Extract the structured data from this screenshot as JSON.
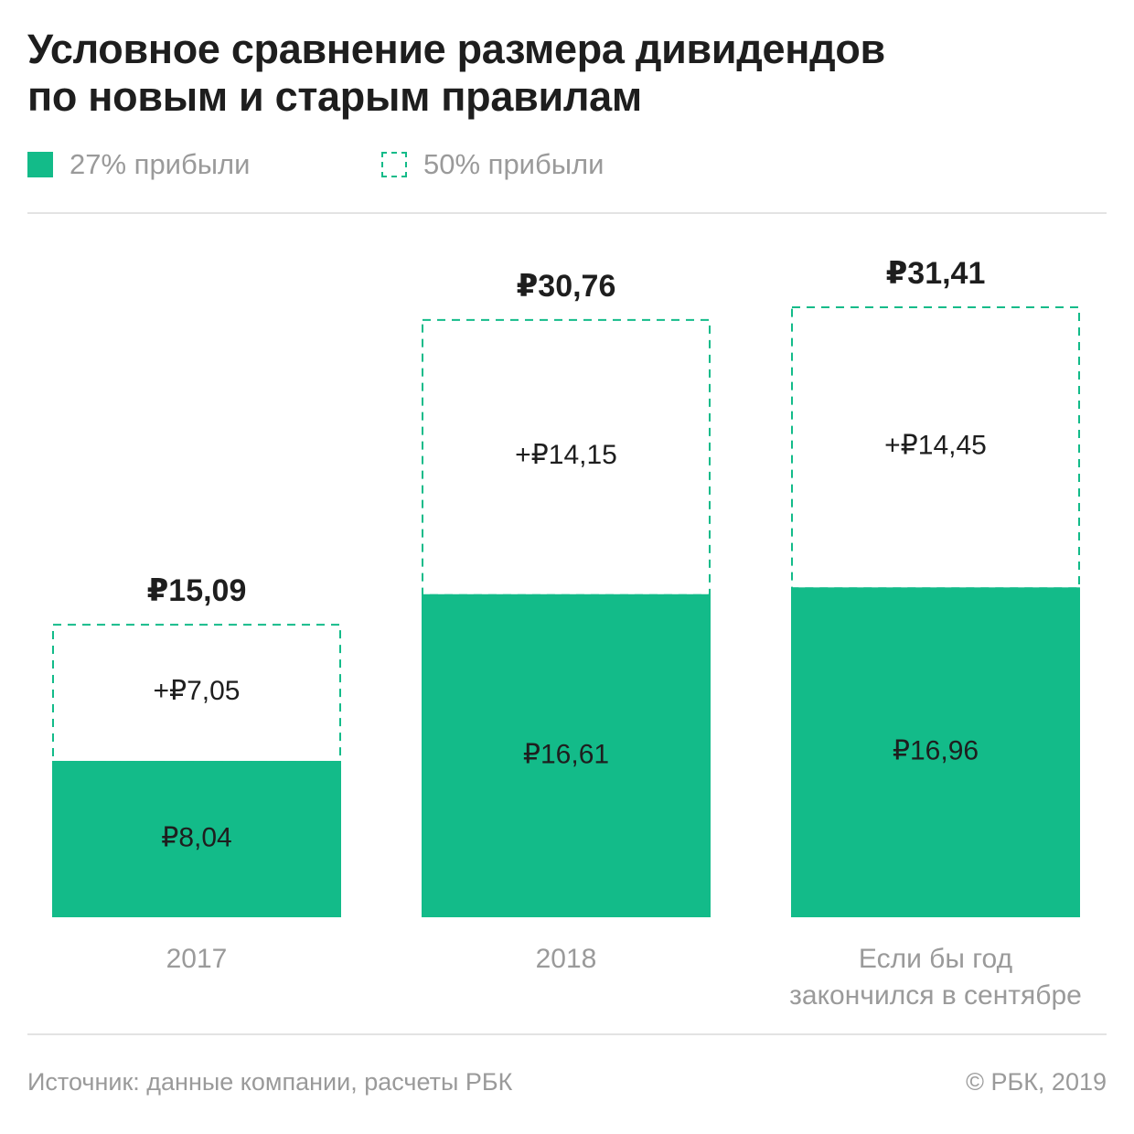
{
  "title_lines": [
    "Условное сравнение размера дивидендов",
    "по новым и старым правилам"
  ],
  "legend": {
    "item1": {
      "label": "27% прибыли",
      "style": "solid"
    },
    "item2": {
      "label": "50% прибыли",
      "style": "dashed"
    }
  },
  "colors": {
    "accent": "#13bb89",
    "muted_text": "#9a9a9a",
    "dark_text": "#1e1e1e"
  },
  "chart_data": {
    "type": "bar",
    "stacked": true,
    "categories": [
      [
        "2017"
      ],
      [
        "2018"
      ],
      [
        "Если бы год",
        "закончился в сентябре"
      ]
    ],
    "series": [
      {
        "name": "27% прибыли",
        "values": [
          8.04,
          16.61,
          16.96
        ],
        "labels": [
          "₽8,04",
          "₽16,61",
          "₽16,96"
        ]
      },
      {
        "name": "50% прибыли",
        "values": [
          7.05,
          14.15,
          14.45
        ],
        "labels": [
          "+₽7,05",
          "+₽14,15",
          "+₽14,45"
        ]
      }
    ],
    "totals": [
      15.09,
      30.76,
      31.41
    ],
    "total_labels": [
      "₽15,09",
      "₽30,76",
      "₽31,41"
    ],
    "ylim": [
      0,
      31.41
    ],
    "grid": false,
    "legend_position": "top-left"
  },
  "footer": {
    "source": "Источник: данные компании, расчеты РБК",
    "copyright": "© РБК, 2019"
  }
}
